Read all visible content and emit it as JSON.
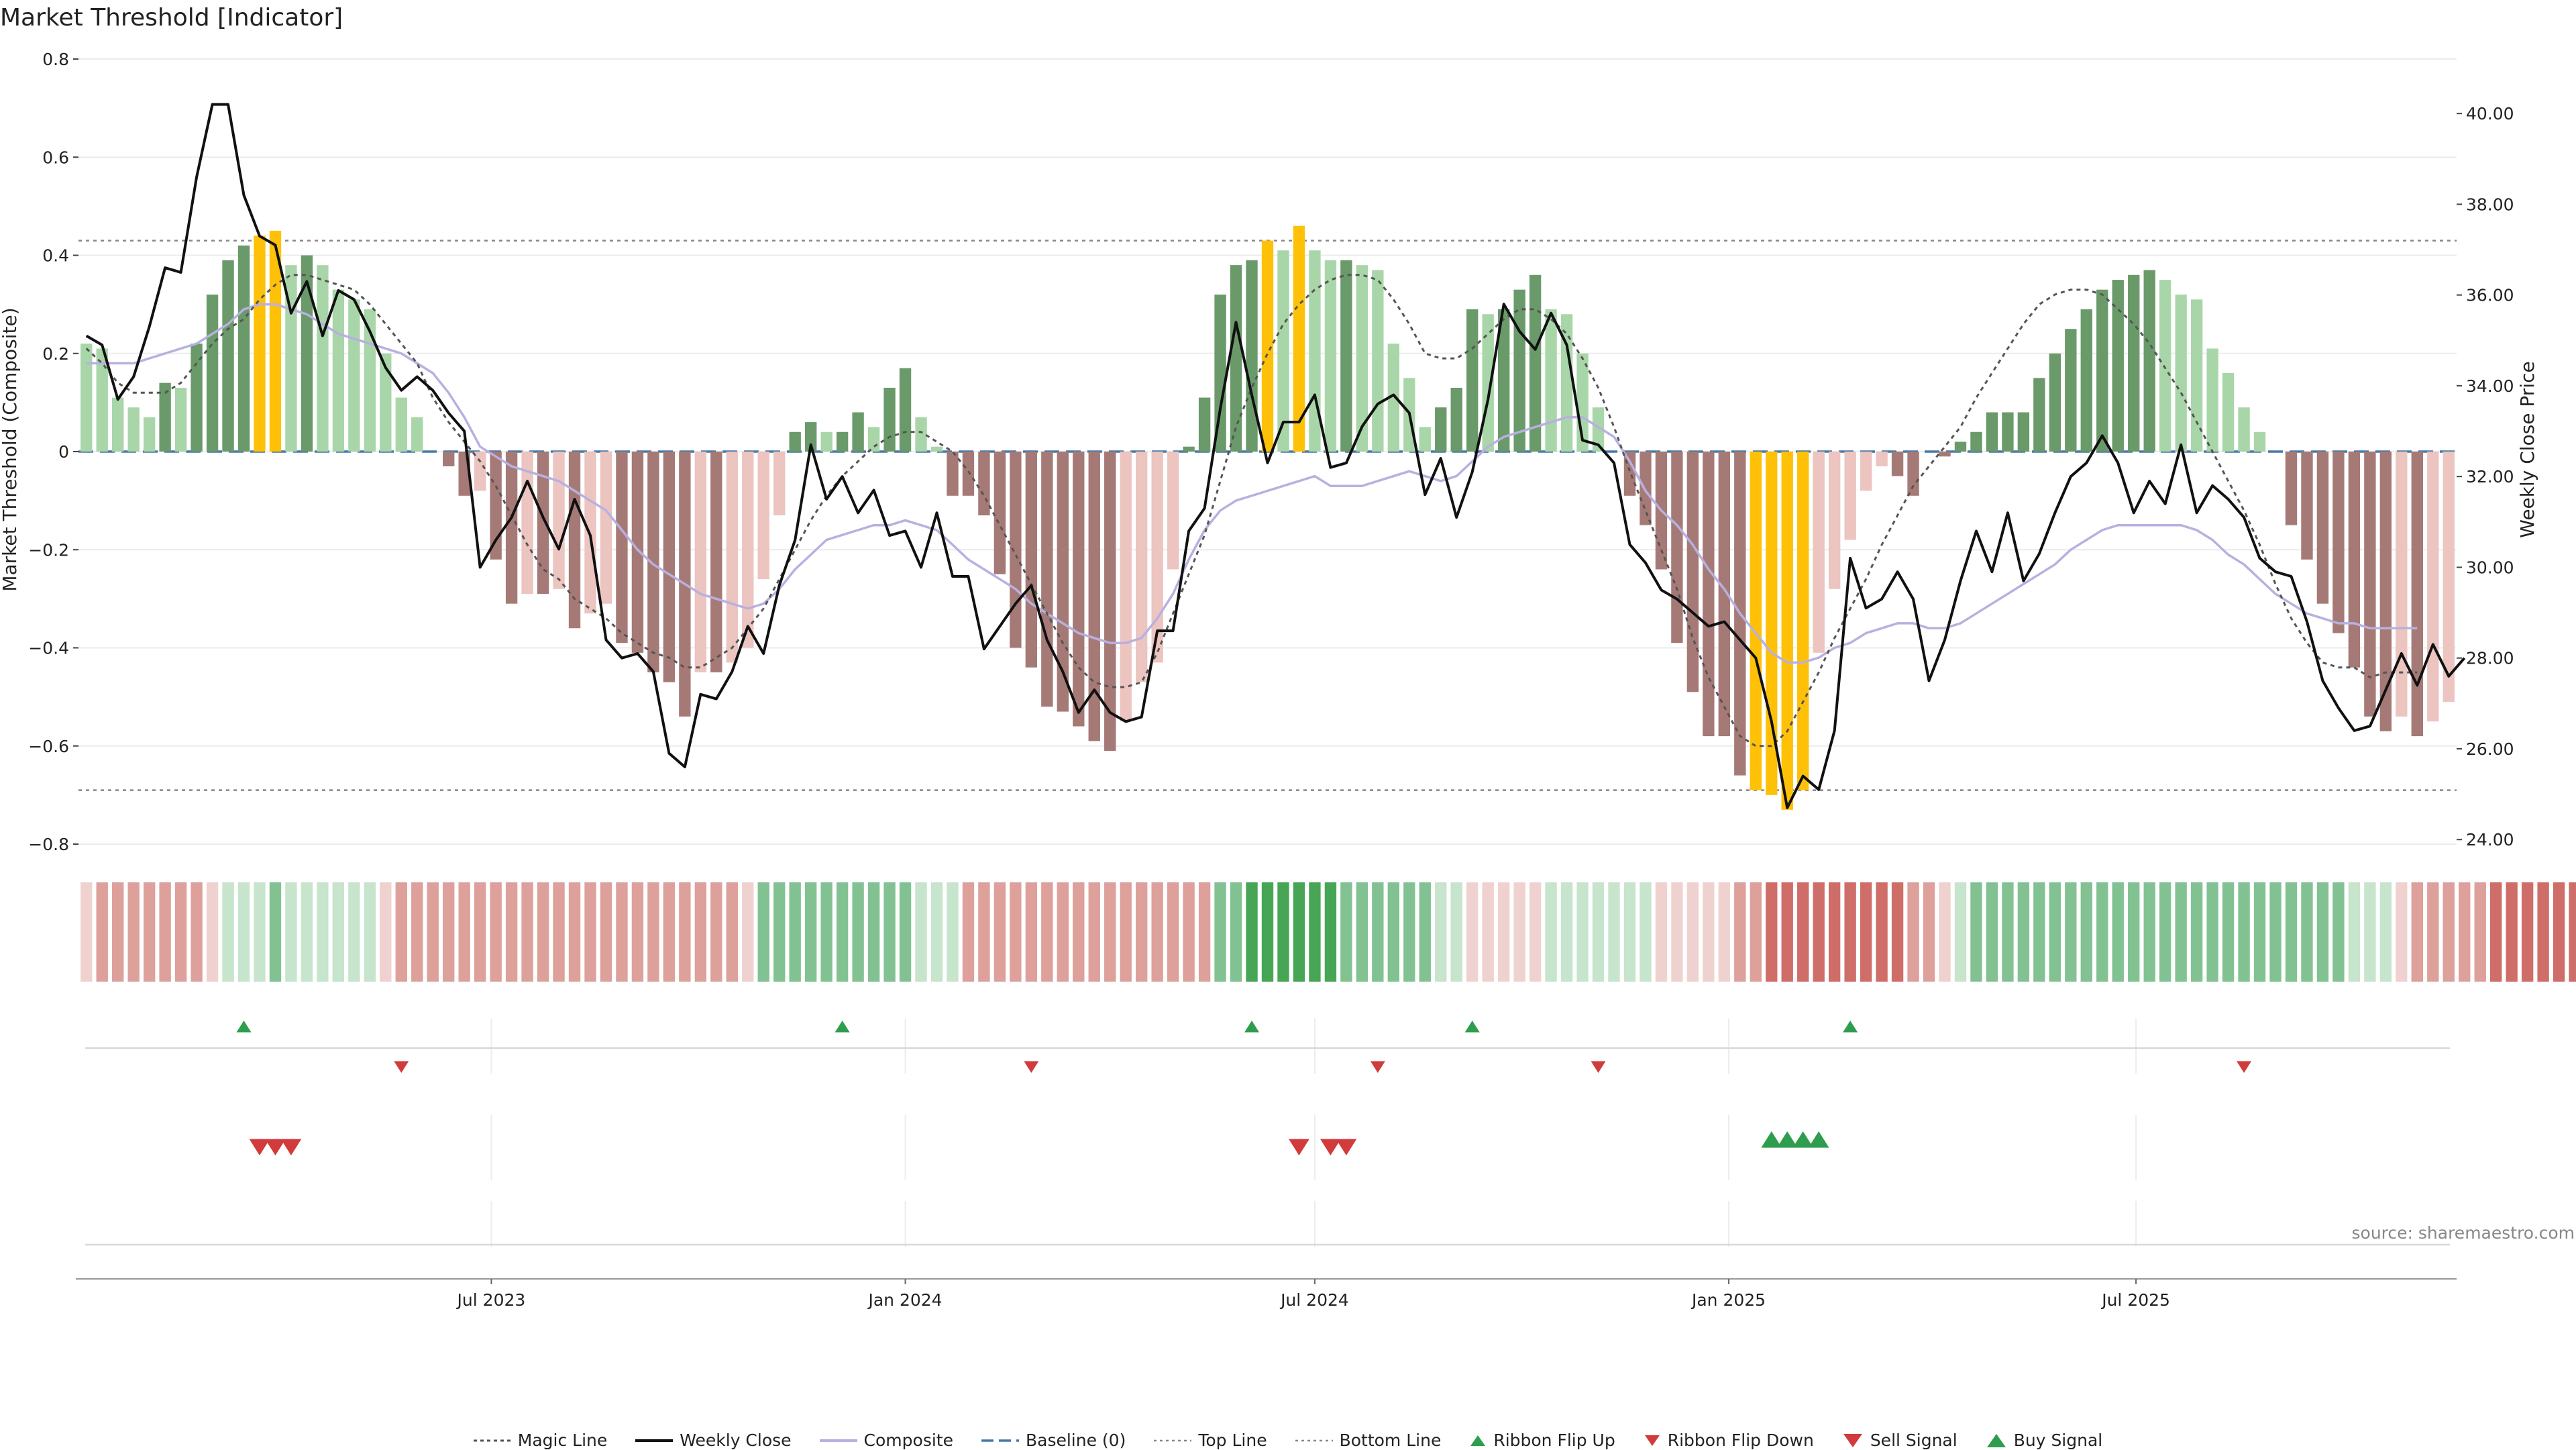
{
  "title": "Market Threshold [Indicator]",
  "source": "source: sharemaestro.com",
  "colors": {
    "strong_pos": "#6a9a6a",
    "weak_pos": "#a9d6a9",
    "strong_neg": "#a57a76",
    "weak_neg": "#ecc4c0",
    "extreme": "#ffc107",
    "price_line": "#111111",
    "composite_line": "#b8b0e0",
    "magic_line": "#555555",
    "baseline": "#4a79a8",
    "threshold_lines": "#888888",
    "signal_up": "#2e9e4e",
    "signal_down": "#d23b3b"
  },
  "legend": [
    {
      "key": "magic",
      "icon": "dotted-line",
      "label": "Magic Line"
    },
    {
      "key": "price",
      "icon": "solid-line",
      "label": "Weekly Close"
    },
    {
      "key": "composite",
      "icon": "lavender-line",
      "label": "Composite"
    },
    {
      "key": "baseline",
      "icon": "dashed-line",
      "label": "Baseline (0)"
    },
    {
      "key": "top",
      "icon": "dotted-line-light",
      "label": "Top Line"
    },
    {
      "key": "bottom",
      "icon": "dotted-line-light",
      "label": "Bottom Line"
    },
    {
      "key": "flipup",
      "icon": "triangle-up-small",
      "label": "Ribbon Flip Up"
    },
    {
      "key": "flipdown",
      "icon": "triangle-down-small",
      "label": "Ribbon Flip Down"
    },
    {
      "key": "sell",
      "icon": "triangle-down-large",
      "label": "Sell Signal"
    },
    {
      "key": "buy",
      "icon": "triangle-up-large",
      "label": "Buy Signal"
    }
  ],
  "chart_data": {
    "type": "bar",
    "x_start": "2023-01-02",
    "x_step_days": 7,
    "ylabel": "Market Threshold (Composite)",
    "ylabel_right": "Weekly Close Price",
    "ylim": [
      -0.8,
      0.8
    ],
    "ylim_right": [
      23.9,
      41.2
    ],
    "yticks": [
      "-0.8",
      "-0.6",
      "-0.4",
      "-0.2",
      "0",
      "0.2",
      "0.4",
      "0.6",
      "0.8"
    ],
    "yticks_right": [
      "24.00",
      "26.00",
      "28.00",
      "30.00",
      "32.00",
      "34.00",
      "36.00",
      "38.00",
      "40.00"
    ],
    "xticks": [
      {
        "date": "2023-07-01",
        "label": "Jul 2023"
      },
      {
        "date": "2024-01-01",
        "label": "Jan 2024"
      },
      {
        "date": "2024-07-01",
        "label": "Jul 2024"
      },
      {
        "date": "2025-01-01",
        "label": "Jan 2025"
      },
      {
        "date": "2025-07-01",
        "label": "Jul 2025"
      }
    ],
    "top_line": 0.43,
    "bottom_line": -0.69,
    "baseline": 0,
    "composite_bars": [
      0.22,
      0.21,
      0.11,
      0.09,
      0.07,
      0.14,
      0.13,
      0.22,
      0.32,
      0.39,
      0.42,
      0.44,
      0.45,
      0.38,
      0.4,
      0.38,
      0.33,
      0.31,
      0.29,
      0.2,
      0.11,
      0.07,
      0.0,
      -0.03,
      -0.09,
      -0.08,
      -0.22,
      -0.31,
      -0.29,
      -0.29,
      -0.28,
      -0.36,
      -0.33,
      -0.31,
      -0.39,
      -0.41,
      -0.45,
      -0.47,
      -0.54,
      -0.45,
      -0.45,
      -0.43,
      -0.4,
      -0.26,
      -0.13,
      0.04,
      0.06,
      0.04,
      0.04,
      0.08,
      0.05,
      0.13,
      0.17,
      0.07,
      0.01,
      -0.09,
      -0.09,
      -0.13,
      -0.25,
      -0.4,
      -0.44,
      -0.52,
      -0.53,
      -0.56,
      -0.59,
      -0.61,
      -0.55,
      -0.47,
      -0.43,
      -0.24,
      0.01,
      0.11,
      0.32,
      0.38,
      0.39,
      0.43,
      0.41,
      0.46,
      0.41,
      0.39,
      0.39,
      0.38,
      0.37,
      0.22,
      0.15,
      0.05,
      0.09,
      0.13,
      0.29,
      0.28,
      0.29,
      0.33,
      0.36,
      0.29,
      0.28,
      0.2,
      0.09,
      0.0,
      -0.09,
      -0.15,
      -0.24,
      -0.39,
      -0.49,
      -0.58,
      -0.58,
      -0.66,
      -0.69,
      -0.7,
      -0.73,
      -0.69,
      -0.41,
      -0.28,
      -0.18,
      -0.08,
      -0.03,
      -0.05,
      -0.09,
      0.0,
      -0.01,
      0.02,
      0.04,
      0.08,
      0.08,
      0.08,
      0.15,
      0.2,
      0.25,
      0.29,
      0.33,
      0.35,
      0.36,
      0.37,
      0.35,
      0.32,
      0.31,
      0.21,
      0.16,
      0.09,
      0.04,
      0.0,
      -0.15,
      -0.22,
      -0.31,
      -0.37,
      -0.44,
      -0.54,
      -0.57,
      -0.54,
      -0.58,
      -0.55,
      -0.51
    ],
    "weekly_close": [
      35.1,
      34.9,
      33.7,
      34.2,
      35.3,
      36.6,
      36.5,
      38.6,
      40.2,
      40.2,
      38.2,
      37.3,
      37.1,
      35.6,
      36.3,
      35.1,
      36.1,
      35.9,
      35.2,
      34.4,
      33.9,
      34.2,
      33.9,
      33.4,
      33.0,
      30.0,
      30.6,
      31.1,
      31.9,
      31.1,
      30.4,
      31.5,
      30.7,
      28.4,
      28.0,
      28.1,
      27.7,
      25.9,
      25.6,
      27.2,
      27.1,
      27.7,
      28.7,
      28.1,
      29.6,
      30.6,
      32.7,
      31.5,
      32.0,
      31.2,
      31.7,
      30.7,
      30.8,
      30.0,
      31.2,
      29.8,
      29.8,
      28.2,
      28.7,
      29.2,
      29.6,
      28.4,
      27.7,
      26.8,
      27.3,
      26.8,
      26.6,
      26.7,
      28.6,
      28.6,
      30.8,
      31.3,
      33.5,
      35.4,
      33.8,
      32.3,
      33.2,
      33.2,
      33.8,
      32.2,
      32.3,
      33.1,
      33.6,
      33.8,
      33.4,
      31.6,
      32.4,
      31.1,
      32.1,
      33.7,
      35.8,
      35.2,
      34.8,
      35.6,
      34.9,
      32.8,
      32.7,
      32.3,
      30.5,
      30.1,
      29.5,
      29.3,
      29.0,
      28.7,
      28.8,
      28.4,
      28.0,
      26.6,
      24.7,
      25.4,
      25.1,
      26.4,
      30.2,
      29.1,
      29.3,
      29.9,
      29.3,
      27.5,
      28.4,
      29.7,
      30.8,
      29.9,
      31.2,
      29.7,
      30.3,
      31.2,
      32.0,
      32.3,
      32.9,
      32.3,
      31.2,
      31.9,
      31.4,
      32.7,
      31.2,
      31.8,
      31.5,
      31.1,
      30.2,
      29.9,
      29.8,
      28.8,
      27.5,
      26.9,
      26.4,
      26.5,
      27.3,
      28.1,
      27.4,
      28.3,
      27.6,
      28.0
    ],
    "composite_line": [
      0.18,
      0.18,
      0.18,
      0.18,
      0.19,
      0.2,
      0.21,
      0.22,
      0.24,
      0.26,
      0.29,
      0.3,
      0.3,
      0.29,
      0.28,
      0.26,
      0.24,
      0.23,
      0.22,
      0.21,
      0.2,
      0.18,
      0.16,
      0.12,
      0.07,
      0.01,
      -0.01,
      -0.03,
      -0.04,
      -0.05,
      -0.06,
      -0.08,
      -0.1,
      -0.12,
      -0.16,
      -0.2,
      -0.23,
      -0.25,
      -0.27,
      -0.29,
      -0.3,
      -0.31,
      -0.32,
      -0.31,
      -0.28,
      -0.24,
      -0.21,
      -0.18,
      -0.17,
      -0.16,
      -0.15,
      -0.15,
      -0.14,
      -0.15,
      -0.16,
      -0.19,
      -0.22,
      -0.24,
      -0.26,
      -0.28,
      -0.31,
      -0.33,
      -0.35,
      -0.37,
      -0.38,
      -0.39,
      -0.39,
      -0.38,
      -0.34,
      -0.29,
      -0.22,
      -0.16,
      -0.12,
      -0.1,
      -0.09,
      -0.08,
      -0.07,
      -0.06,
      -0.05,
      -0.07,
      -0.07,
      -0.07,
      -0.06,
      -0.05,
      -0.04,
      -0.05,
      -0.06,
      -0.05,
      -0.02,
      0.01,
      0.03,
      0.04,
      0.05,
      0.06,
      0.07,
      0.07,
      0.05,
      0.03,
      -0.02,
      -0.08,
      -0.12,
      -0.15,
      -0.19,
      -0.24,
      -0.28,
      -0.33,
      -0.37,
      -0.41,
      -0.43,
      -0.43,
      -0.42,
      -0.4,
      -0.39,
      -0.37,
      -0.36,
      -0.35,
      -0.35,
      -0.36,
      -0.36,
      -0.35,
      -0.33,
      -0.31,
      -0.29,
      -0.27,
      -0.25,
      -0.23,
      -0.2,
      -0.18,
      -0.16,
      -0.15,
      -0.15,
      -0.15,
      -0.15,
      -0.15,
      -0.16,
      -0.18,
      -0.21,
      -0.23,
      -0.26,
      -0.29,
      -0.31,
      -0.33,
      -0.34,
      -0.35,
      -0.35,
      -0.36,
      -0.36,
      -0.36,
      -0.36
    ],
    "magic_line": [
      0.21,
      0.18,
      0.14,
      0.12,
      0.12,
      0.12,
      0.14,
      0.18,
      0.22,
      0.25,
      0.27,
      0.31,
      0.34,
      0.36,
      0.36,
      0.35,
      0.34,
      0.33,
      0.3,
      0.26,
      0.22,
      0.18,
      0.11,
      0.06,
      0.02,
      -0.02,
      -0.07,
      -0.13,
      -0.19,
      -0.24,
      -0.26,
      -0.3,
      -0.32,
      -0.34,
      -0.37,
      -0.39,
      -0.41,
      -0.42,
      -0.44,
      -0.44,
      -0.42,
      -0.4,
      -0.36,
      -0.32,
      -0.26,
      -0.2,
      -0.14,
      -0.09,
      -0.05,
      -0.02,
      0.01,
      0.03,
      0.04,
      0.04,
      0.02,
      0.0,
      -0.04,
      -0.09,
      -0.15,
      -0.21,
      -0.27,
      -0.33,
      -0.39,
      -0.44,
      -0.47,
      -0.48,
      -0.48,
      -0.47,
      -0.41,
      -0.33,
      -0.25,
      -0.17,
      -0.06,
      0.05,
      0.13,
      0.2,
      0.26,
      0.3,
      0.33,
      0.35,
      0.36,
      0.36,
      0.35,
      0.31,
      0.26,
      0.2,
      0.19,
      0.19,
      0.21,
      0.24,
      0.27,
      0.29,
      0.29,
      0.27,
      0.24,
      0.19,
      0.13,
      0.05,
      -0.04,
      -0.12,
      -0.2,
      -0.28,
      -0.38,
      -0.46,
      -0.52,
      -0.58,
      -0.6,
      -0.6,
      -0.57,
      -0.51,
      -0.45,
      -0.38,
      -0.32,
      -0.26,
      -0.19,
      -0.13,
      -0.07,
      -0.03,
      0.01,
      0.05,
      0.11,
      0.16,
      0.21,
      0.26,
      0.3,
      0.32,
      0.33,
      0.33,
      0.32,
      0.29,
      0.26,
      0.22,
      0.17,
      0.12,
      0.06,
      0.0,
      -0.06,
      -0.12,
      -0.19,
      -0.27,
      -0.34,
      -0.39,
      -0.43,
      -0.44,
      -0.44,
      -0.46,
      -0.45,
      -0.45,
      -0.45
    ],
    "ribbon": [
      -1,
      -2,
      -2,
      -2,
      -2,
      -2,
      -2,
      -2,
      -1,
      1,
      1,
      1,
      2,
      1,
      1,
      1,
      1,
      1,
      1,
      -1,
      -2,
      -2,
      -2,
      -2,
      -2,
      -2,
      -2,
      -2,
      -2,
      -2,
      -2,
      -2,
      -2,
      -2,
      -2,
      -2,
      -2,
      -2,
      -2,
      -2,
      -2,
      -2,
      -1,
      2,
      2,
      2,
      2,
      2,
      2,
      2,
      2,
      2,
      2,
      1,
      1,
      1,
      -2,
      -2,
      -2,
      -2,
      -2,
      -2,
      -2,
      -2,
      -2,
      -2,
      -2,
      -2,
      -2,
      -2,
      -2,
      -2,
      2,
      2,
      3,
      3,
      3,
      3,
      3,
      3,
      2,
      2,
      2,
      2,
      2,
      2,
      1,
      1,
      -1,
      -1,
      -1,
      -1,
      -1,
      1,
      1,
      1,
      1,
      1,
      1,
      1,
      -1,
      -1,
      -1,
      -1,
      -1,
      -2,
      -2,
      -3,
      -3,
      -3,
      -3,
      -3,
      -3,
      -3,
      -3,
      -3,
      -2,
      -2,
      -1,
      1,
      2,
      2,
      2,
      2,
      2,
      2,
      2,
      2,
      2,
      2,
      2,
      2,
      2,
      2,
      2,
      2,
      2,
      2,
      2,
      2,
      2,
      2,
      2,
      2,
      1,
      1,
      1,
      -1,
      -2,
      -2,
      -2,
      -2,
      -2,
      -3,
      -3,
      -3,
      -3,
      -3,
      -3
    ],
    "ribbon_flip_up": [
      "2023-03-13",
      "2023-12-04",
      "2024-06-03",
      "2024-09-09",
      "2025-02-24"
    ],
    "ribbon_flip_down": [
      "2023-05-22",
      "2024-02-26",
      "2024-07-29",
      "2024-11-04",
      "2025-08-18"
    ],
    "sell_signals": [
      "2023-03-20",
      "2023-03-27",
      "2023-04-03",
      "2024-06-24",
      "2024-07-08",
      "2024-07-15"
    ],
    "buy_signals": [
      "2025-01-20",
      "2025-01-27",
      "2025-02-03",
      "2025-02-10"
    ]
  }
}
